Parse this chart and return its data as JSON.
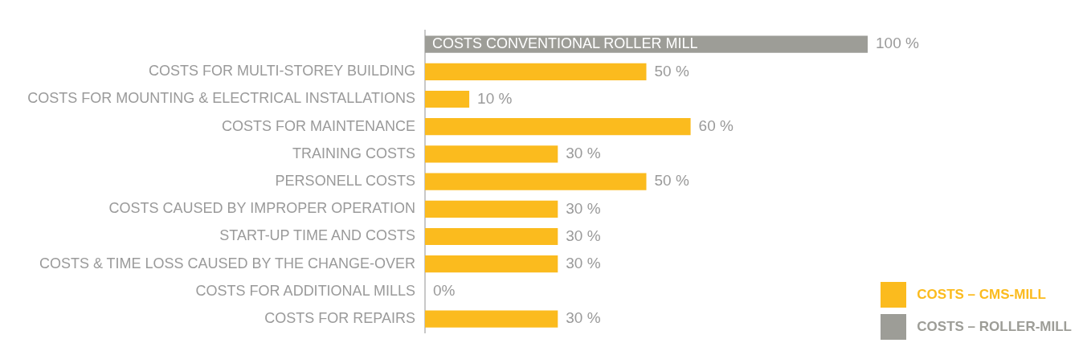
{
  "chart_data": {
    "type": "bar",
    "orientation": "horizontal",
    "xlim": [
      0,
      100
    ],
    "legend": "bottom right",
    "categories": [
      "COSTS CONVENTIONAL ROLLER MILL",
      "COSTS FOR MULTI-STOREY BUILDING",
      "COSTS FOR MOUNTING & ELECTRICAL INSTALLATIONS",
      "COSTS FOR MAINTENANCE",
      "TRAINING COSTS",
      "PERSONELL COSTS",
      "COSTS CAUSED BY IMPROPER OPERATION",
      "START-UP TIME AND COSTS",
      "COSTS & TIME LOSS CAUSED BY THE CHANGE-OVER",
      "COSTS FOR ADDITIONAL MILLS",
      "COSTS FOR REPAIRS"
    ],
    "series": [
      {
        "name": "COSTS – CMS-MILL",
        "color": "#fbbb1e",
        "values": [
          null,
          50,
          10,
          60,
          30,
          50,
          30,
          30,
          30,
          0,
          30
        ],
        "value_labels": [
          null,
          "50 %",
          "10 %",
          "60 %",
          "30 %",
          "50 %",
          "30 %",
          "30 %",
          "30 %",
          "0%",
          "30 %"
        ]
      },
      {
        "name": "COSTS – ROLLER-MILL",
        "color": "#9d9d97",
        "values": [
          100,
          null,
          null,
          null,
          null,
          null,
          null,
          null,
          null,
          null,
          null
        ],
        "value_labels": [
          "100 %",
          null,
          null,
          null,
          null,
          null,
          null,
          null,
          null,
          null,
          null
        ]
      }
    ]
  }
}
